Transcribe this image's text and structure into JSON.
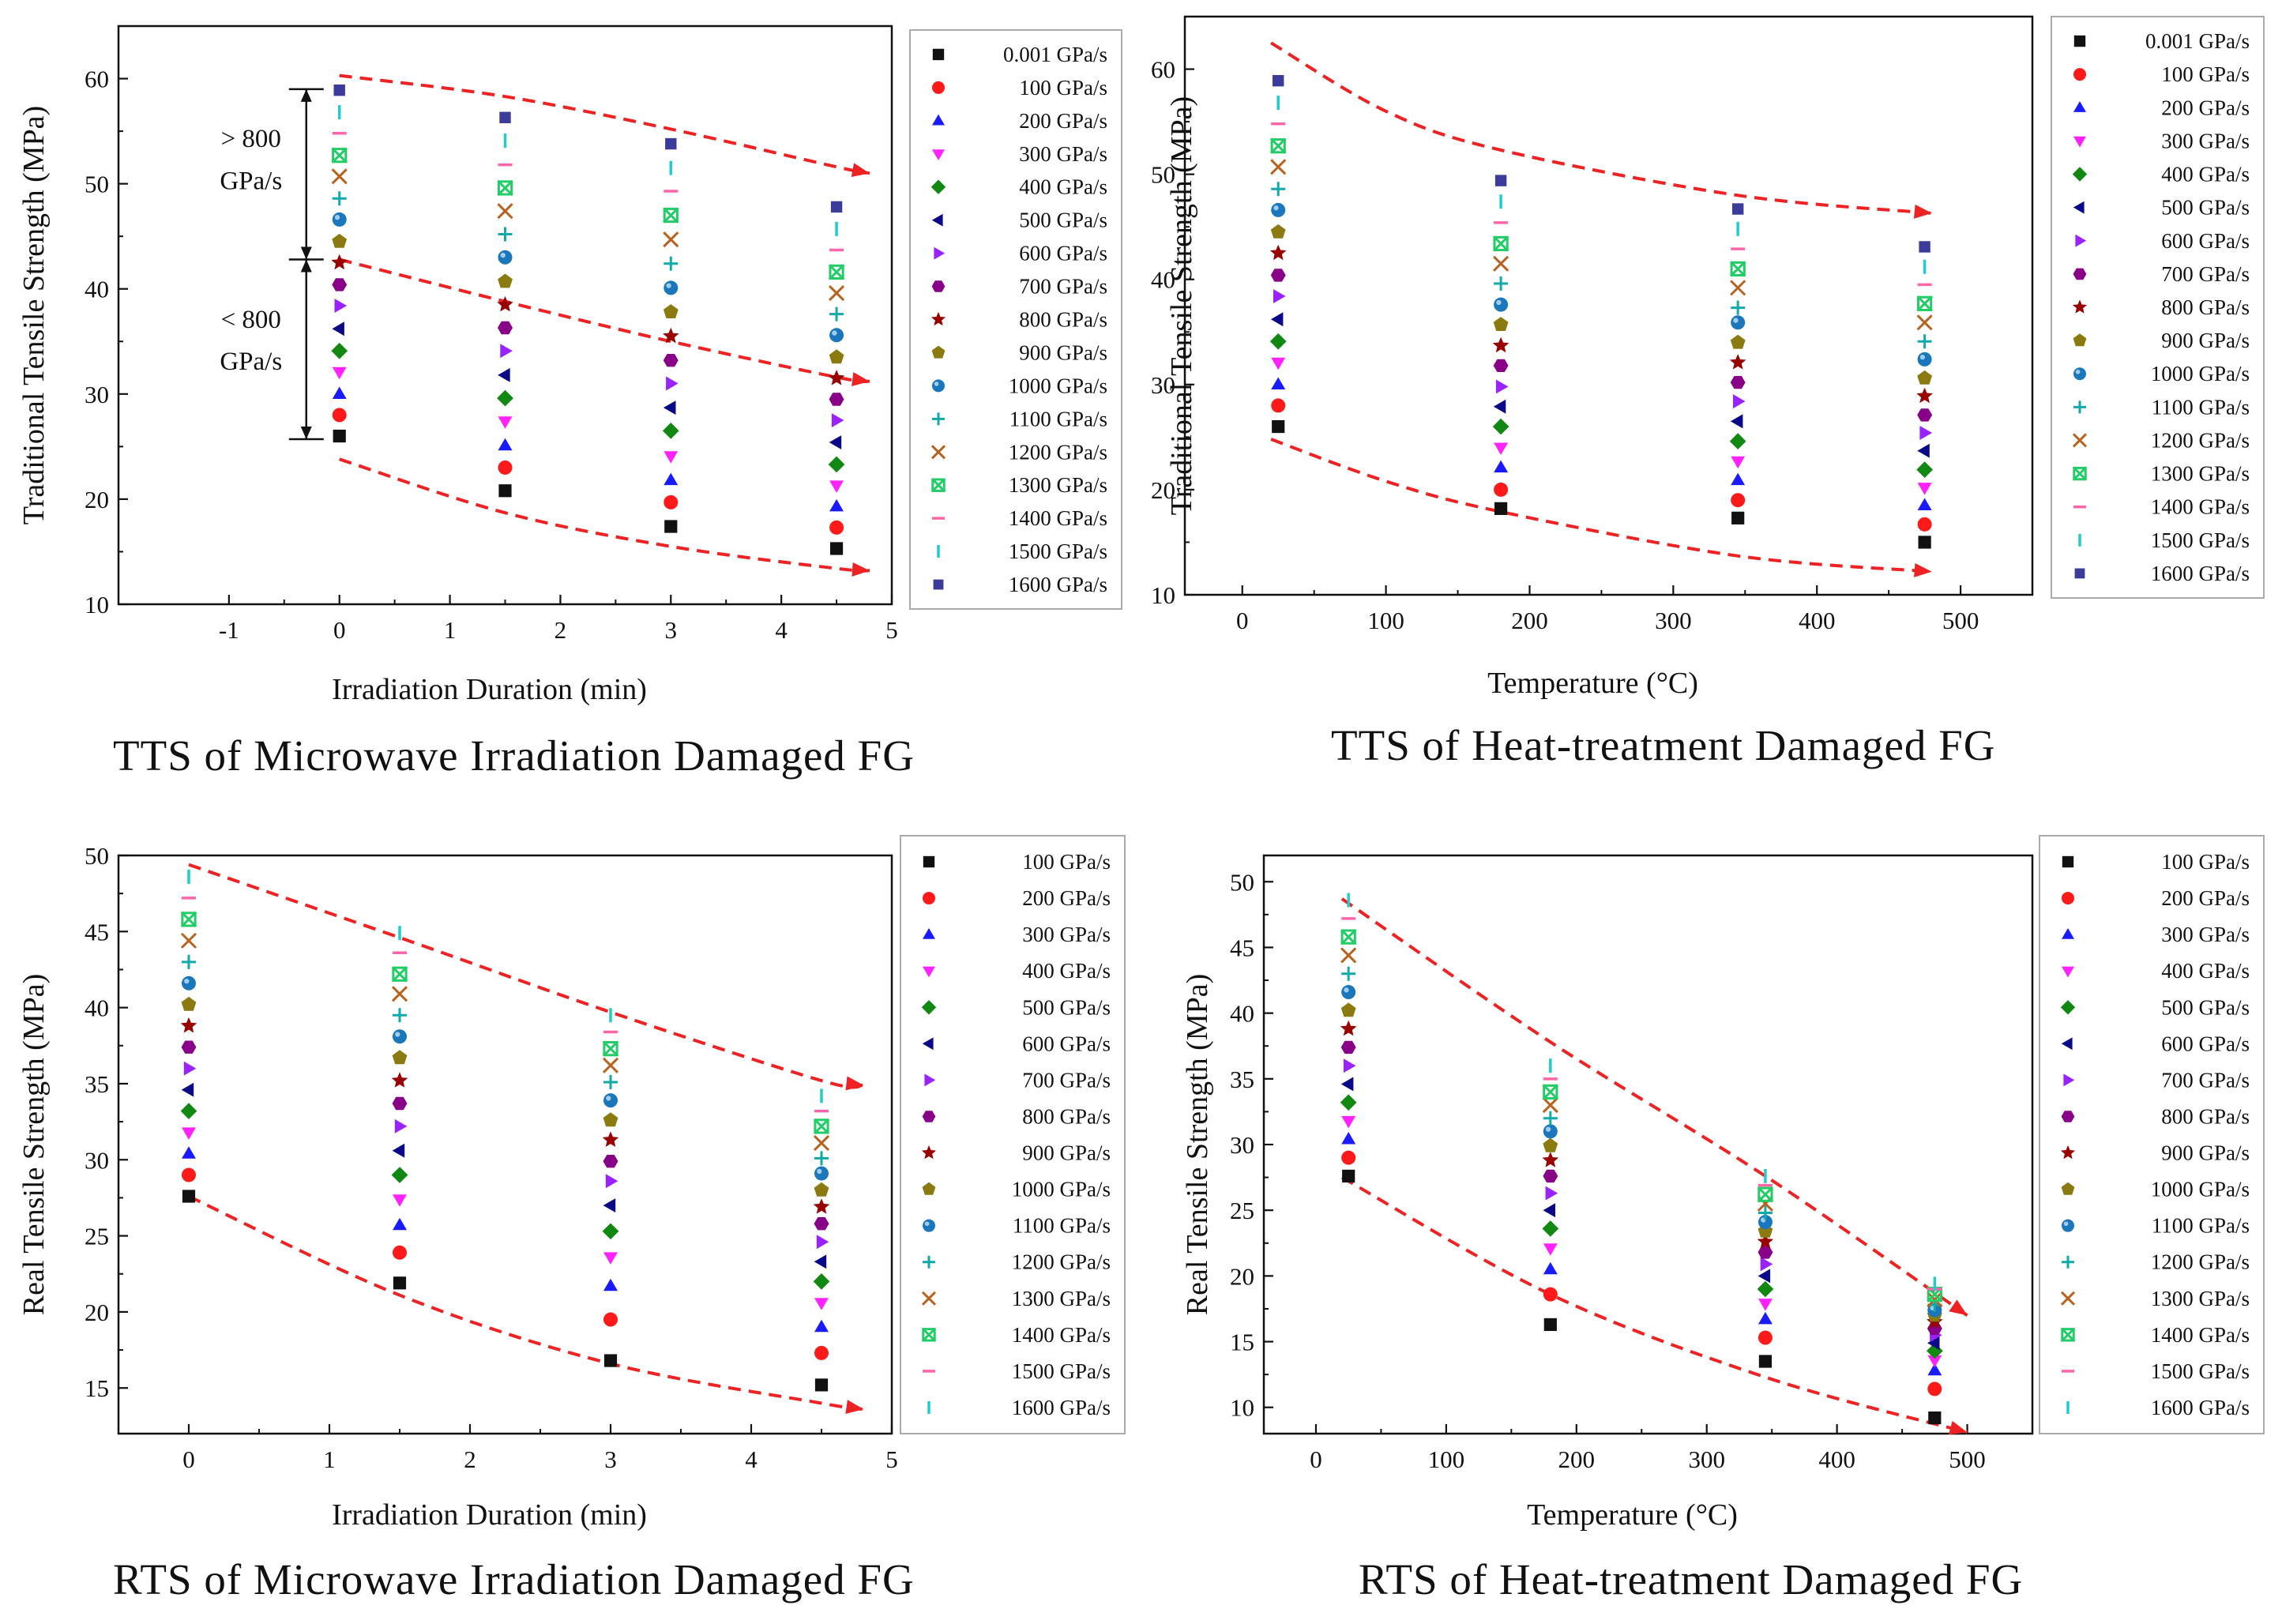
{
  "colors": {
    "series": [
      "#111111",
      "#ff1a1a",
      "#1a1aff",
      "#ff22ff",
      "#118811",
      "#0a0a88",
      "#9922ff",
      "#880088",
      "#990000",
      "#8a7a10",
      "#1a77bb",
      "#11a9a9",
      "#b8621e",
      "#22cc66",
      "#ff66aa",
      "#22cccc",
      "#3b3b9a"
    ],
    "envelope": "#ee2222"
  },
  "chart_data": [
    {
      "type": "scatter",
      "title": "TTS of Microwave Irradiation Damaged FG",
      "xlabel": "Irradiation Duration (min)",
      "ylabel": "Traditional Tensile Strength (MPa)",
      "xlim": [
        -2,
        5
      ],
      "ylim": [
        10,
        65
      ],
      "xticks": [
        -1,
        0,
        1,
        2,
        3,
        4,
        5
      ],
      "yticks": [
        10,
        20,
        30,
        40,
        50,
        60
      ],
      "x": [
        0,
        1.5,
        3,
        4.5
      ],
      "series": [
        {
          "name": "0.001 GPa/s",
          "marker": "square",
          "values": [
            26.0,
            20.8,
            17.4,
            15.3
          ]
        },
        {
          "name": "100 GPa/s",
          "marker": "circle",
          "values": [
            28.0,
            23.0,
            19.7,
            17.3
          ]
        },
        {
          "name": "200 GPa/s",
          "marker": "triangle-up",
          "values": [
            30.0,
            25.1,
            21.8,
            19.3
          ]
        },
        {
          "name": "300 GPa/s",
          "marker": "triangle-down",
          "values": [
            32.1,
            27.4,
            24.1,
            21.3
          ]
        },
        {
          "name": "400 GPa/s",
          "marker": "diamond",
          "values": [
            34.1,
            29.6,
            26.5,
            23.3
          ]
        },
        {
          "name": "500 GPa/s",
          "marker": "triangle-left",
          "values": [
            36.2,
            31.8,
            28.7,
            25.4
          ]
        },
        {
          "name": "600 GPa/s",
          "marker": "triangle-right",
          "values": [
            38.4,
            34.1,
            31.0,
            27.5
          ]
        },
        {
          "name": "700 GPa/s",
          "marker": "hexagon",
          "values": [
            40.4,
            36.3,
            33.2,
            29.5
          ]
        },
        {
          "name": "800 GPa/s",
          "marker": "star",
          "values": [
            42.5,
            38.5,
            35.5,
            31.5
          ]
        },
        {
          "name": "900 GPa/s",
          "marker": "pentagon",
          "values": [
            44.5,
            40.7,
            37.8,
            33.5
          ]
        },
        {
          "name": "1000 GPa/s",
          "marker": "sphere",
          "values": [
            46.6,
            43.0,
            40.1,
            35.6
          ]
        },
        {
          "name": "1100 GPa/s",
          "marker": "plus",
          "values": [
            48.6,
            45.2,
            42.4,
            37.6
          ]
        },
        {
          "name": "1200 GPa/s",
          "marker": "cross",
          "values": [
            50.7,
            47.4,
            44.7,
            39.6
          ]
        },
        {
          "name": "1300 GPa/s",
          "marker": "box-x",
          "values": [
            52.7,
            49.6,
            47.0,
            41.6
          ]
        },
        {
          "name": "1400 GPa/s",
          "marker": "hline",
          "values": [
            54.8,
            51.8,
            49.3,
            43.7
          ]
        },
        {
          "name": "1500 GPa/s",
          "marker": "vline",
          "values": [
            56.8,
            54.1,
            51.5,
            45.7
          ]
        },
        {
          "name": "1600 GPa/s",
          "marker": "small-square",
          "values": [
            58.9,
            56.3,
            53.8,
            47.8
          ]
        }
      ],
      "envelopes": [
        {
          "x": [
            0,
            1.5,
            3,
            4.5,
            4.8
          ],
          "y": [
            60.3,
            58.3,
            55.2,
            51.6,
            51.0
          ]
        },
        {
          "x": [
            0,
            1.5,
            3,
            4.5,
            4.8
          ],
          "y": [
            42.8,
            38.8,
            35.0,
            31.6,
            31.2
          ]
        },
        {
          "x": [
            0,
            1.5,
            3,
            4.5,
            4.8
          ],
          "y": [
            23.8,
            18.7,
            15.5,
            13.4,
            13.2
          ]
        }
      ],
      "annotations": {
        "upper_line1": "> 800",
        "upper_line2": "GPa/s",
        "lower_line1": "< 800",
        "lower_line2": "GPa/s",
        "bracket_values": [
          59.0,
          42.8,
          25.7
        ]
      }
    },
    {
      "type": "scatter",
      "title": "TTS of Heat-treatment Damaged FG",
      "xlabel": "Temperature (°C)",
      "ylabel": "Traditional Tensile Strength (MPa)",
      "xlim": [
        -40,
        550
      ],
      "ylim": [
        10,
        65
      ],
      "xticks": [
        0,
        100,
        200,
        300,
        400,
        500
      ],
      "yticks": [
        10,
        20,
        30,
        40,
        50,
        60
      ],
      "x": [
        25,
        180,
        345,
        475
      ],
      "series": [
        {
          "name": "0.001 GPa/s",
          "marker": "square",
          "values": [
            26.0,
            18.2,
            17.3,
            15.0
          ]
        },
        {
          "name": "100 GPa/s",
          "marker": "circle",
          "values": [
            28.0,
            20.0,
            19.0,
            16.7
          ]
        },
        {
          "name": "200 GPa/s",
          "marker": "triangle-up",
          "values": [
            30.0,
            22.1,
            20.9,
            18.5
          ]
        },
        {
          "name": "300 GPa/s",
          "marker": "triangle-down",
          "values": [
            32.1,
            24.0,
            22.7,
            20.2
          ]
        },
        {
          "name": "400 GPa/s",
          "marker": "diamond",
          "values": [
            34.1,
            26.0,
            24.6,
            21.9
          ]
        },
        {
          "name": "500 GPa/s",
          "marker": "triangle-left",
          "values": [
            36.2,
            27.9,
            26.5,
            23.7
          ]
        },
        {
          "name": "600 GPa/s",
          "marker": "triangle-right",
          "values": [
            38.4,
            29.8,
            28.4,
            25.4
          ]
        },
        {
          "name": "700 GPa/s",
          "marker": "hexagon",
          "values": [
            40.4,
            31.8,
            30.2,
            27.1
          ]
        },
        {
          "name": "800 GPa/s",
          "marker": "star",
          "values": [
            42.5,
            33.7,
            32.1,
            28.9
          ]
        },
        {
          "name": "900 GPa/s",
          "marker": "pentagon",
          "values": [
            44.5,
            35.7,
            34.0,
            30.6
          ]
        },
        {
          "name": "1000 GPa/s",
          "marker": "sphere",
          "values": [
            46.6,
            37.6,
            35.9,
            32.4
          ]
        },
        {
          "name": "1100 GPa/s",
          "marker": "plus",
          "values": [
            48.6,
            39.6,
            37.3,
            34.1
          ]
        },
        {
          "name": "1200 GPa/s",
          "marker": "cross",
          "values": [
            50.7,
            41.5,
            39.2,
            35.9
          ]
        },
        {
          "name": "1300 GPa/s",
          "marker": "box-x",
          "values": [
            52.7,
            43.4,
            41.0,
            37.7
          ]
        },
        {
          "name": "1400 GPa/s",
          "marker": "hline",
          "values": [
            54.8,
            45.4,
            42.9,
            39.5
          ]
        },
        {
          "name": "1500 GPa/s",
          "marker": "vline",
          "values": [
            56.8,
            47.4,
            44.8,
            41.2
          ]
        },
        {
          "name": "1600 GPa/s",
          "marker": "small-square",
          "values": [
            58.9,
            49.4,
            46.7,
            43.1
          ]
        }
      ],
      "envelopes": [
        {
          "x": [
            20,
            100,
            180,
            345,
            480
          ],
          "y": [
            62.5,
            56.0,
            52.3,
            48.0,
            46.3
          ]
        },
        {
          "x": [
            20,
            100,
            180,
            345,
            480
          ],
          "y": [
            24.8,
            20.8,
            17.9,
            13.7,
            12.2
          ]
        }
      ]
    },
    {
      "type": "scatter",
      "title": "RTS of Microwave Irradiation Damaged FG",
      "xlabel": "Irradiation Duration (min)",
      "ylabel": "Real Tensile Strength (MPa)",
      "xlim": [
        -0.5,
        5
      ],
      "ylim": [
        12,
        50
      ],
      "xticks": [
        0,
        1,
        2,
        3,
        4,
        5
      ],
      "yticks": [
        15,
        20,
        25,
        30,
        35,
        40,
        45,
        50
      ],
      "x": [
        0,
        1.5,
        3,
        4.5
      ],
      "series": [
        {
          "name": "100 GPa/s",
          "marker": "square",
          "values": [
            27.6,
            21.9,
            16.8,
            15.2
          ]
        },
        {
          "name": "200 GPa/s",
          "marker": "circle",
          "values": [
            29.0,
            23.9,
            19.5,
            17.3
          ]
        },
        {
          "name": "300 GPa/s",
          "marker": "triangle-up",
          "values": [
            30.4,
            25.7,
            21.7,
            19.0
          ]
        },
        {
          "name": "400 GPa/s",
          "marker": "triangle-down",
          "values": [
            31.8,
            27.4,
            23.6,
            20.6
          ]
        },
        {
          "name": "500 GPa/s",
          "marker": "diamond",
          "values": [
            33.2,
            29.0,
            25.3,
            22.0
          ]
        },
        {
          "name": "600 GPa/s",
          "marker": "triangle-left",
          "values": [
            34.6,
            30.6,
            27.0,
            23.3
          ]
        },
        {
          "name": "700 GPa/s",
          "marker": "triangle-right",
          "values": [
            36.0,
            32.2,
            28.6,
            24.6
          ]
        },
        {
          "name": "800 GPa/s",
          "marker": "hexagon",
          "values": [
            37.4,
            33.7,
            29.9,
            25.8
          ]
        },
        {
          "name": "900 GPa/s",
          "marker": "star",
          "values": [
            38.8,
            35.2,
            31.3,
            26.9
          ]
        },
        {
          "name": "1000 GPa/s",
          "marker": "pentagon",
          "values": [
            40.2,
            36.7,
            32.6,
            28.0
          ]
        },
        {
          "name": "1100 GPa/s",
          "marker": "sphere",
          "values": [
            41.6,
            38.1,
            33.9,
            29.1
          ]
        },
        {
          "name": "1200 GPa/s",
          "marker": "plus",
          "values": [
            43.0,
            39.5,
            35.1,
            30.1
          ]
        },
        {
          "name": "1300 GPa/s",
          "marker": "cross",
          "values": [
            44.4,
            40.9,
            36.2,
            31.1
          ]
        },
        {
          "name": "1400 GPa/s",
          "marker": "box-x",
          "values": [
            45.8,
            42.2,
            37.3,
            32.2
          ]
        },
        {
          "name": "1500 GPa/s",
          "marker": "hline",
          "values": [
            47.2,
            43.6,
            38.4,
            33.2
          ]
        },
        {
          "name": "1600 GPa/s",
          "marker": "vline",
          "values": [
            48.6,
            44.9,
            39.5,
            34.2
          ]
        }
      ],
      "envelopes": [
        {
          "x": [
            0,
            1.5,
            3,
            4.5,
            4.8
          ],
          "y": [
            49.4,
            44.6,
            39.7,
            35.2,
            34.9
          ]
        },
        {
          "x": [
            0,
            1.5,
            3,
            4.5,
            4.8
          ],
          "y": [
            27.6,
            21.1,
            16.6,
            14.0,
            13.6
          ]
        }
      ]
    },
    {
      "type": "scatter",
      "title": "RTS of Heat-treatment Damaged FG",
      "xlabel": "Temperature (°C)",
      "ylabel": "Real Tensile Strength (MPa)",
      "xlim": [
        -40,
        550
      ],
      "ylim": [
        8,
        52
      ],
      "xticks": [
        0,
        100,
        200,
        300,
        400,
        500
      ],
      "yticks": [
        10,
        15,
        20,
        25,
        30,
        35,
        40,
        45,
        50
      ],
      "x": [
        25,
        180,
        345,
        475
      ],
      "series": [
        {
          "name": "100 GPa/s",
          "marker": "square",
          "values": [
            27.6,
            16.3,
            13.5,
            9.2
          ]
        },
        {
          "name": "200 GPa/s",
          "marker": "circle",
          "values": [
            29.0,
            18.6,
            15.3,
            11.4
          ]
        },
        {
          "name": "300 GPa/s",
          "marker": "triangle-up",
          "values": [
            30.4,
            20.5,
            16.7,
            12.8
          ]
        },
        {
          "name": "400 GPa/s",
          "marker": "triangle-down",
          "values": [
            31.8,
            22.1,
            17.9,
            13.6
          ]
        },
        {
          "name": "500 GPa/s",
          "marker": "diamond",
          "values": [
            33.2,
            23.6,
            19.0,
            14.3
          ]
        },
        {
          "name": "600 GPa/s",
          "marker": "triangle-left",
          "values": [
            34.6,
            25.0,
            20.0,
            14.9
          ]
        },
        {
          "name": "700 GPa/s",
          "marker": "triangle-right",
          "values": [
            36.0,
            26.3,
            20.9,
            15.5
          ]
        },
        {
          "name": "800 GPa/s",
          "marker": "hexagon",
          "values": [
            37.4,
            27.6,
            21.8,
            16.0
          ]
        },
        {
          "name": "900 GPa/s",
          "marker": "star",
          "values": [
            38.8,
            28.8,
            22.6,
            16.5
          ]
        },
        {
          "name": "1000 GPa/s",
          "marker": "pentagon",
          "values": [
            40.2,
            29.9,
            23.4,
            17.0
          ]
        },
        {
          "name": "1100 GPa/s",
          "marker": "sphere",
          "values": [
            41.6,
            31.0,
            24.1,
            17.4
          ]
        },
        {
          "name": "1200 GPa/s",
          "marker": "plus",
          "values": [
            43.0,
            32.0,
            24.8,
            17.8
          ]
        },
        {
          "name": "1300 GPa/s",
          "marker": "cross",
          "values": [
            44.4,
            33.0,
            25.5,
            18.2
          ]
        },
        {
          "name": "1400 GPa/s",
          "marker": "box-x",
          "values": [
            45.8,
            34.0,
            26.2,
            18.6
          ]
        },
        {
          "name": "1500 GPa/s",
          "marker": "hline",
          "values": [
            47.2,
            35.0,
            26.9,
            19.0
          ]
        },
        {
          "name": "1600 GPa/s",
          "marker": "vline",
          "values": [
            48.6,
            36.0,
            27.6,
            19.4
          ]
        }
      ],
      "envelopes": [
        {
          "x": [
            20,
            180,
            345,
            500
          ],
          "y": [
            48.7,
            37.8,
            27.6,
            17.0
          ]
        },
        {
          "x": [
            20,
            180,
            345,
            500
          ],
          "y": [
            27.5,
            18.6,
            12.3,
            8.1
          ]
        }
      ]
    }
  ]
}
